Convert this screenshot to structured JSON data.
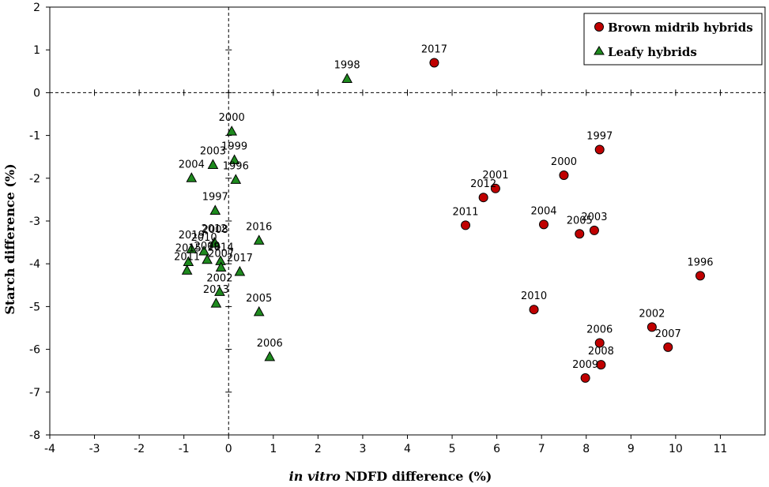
{
  "chart_data": {
    "type": "scatter",
    "xlabel_italic": "in vitro",
    "xlabel_rest": " NDFD difference (%)",
    "ylabel": "Starch difference (%)",
    "xlim": [
      -4,
      12
    ],
    "ylim": [
      -8,
      2
    ],
    "xticks": [
      -4,
      -3,
      -2,
      -1,
      0,
      1,
      2,
      3,
      4,
      5,
      6,
      7,
      8,
      9,
      10,
      11
    ],
    "yticks": [
      -8,
      -7,
      -6,
      -5,
      -4,
      -3,
      -2,
      -1,
      0,
      1,
      2
    ],
    "reference_lines": {
      "x": 0,
      "y": 0,
      "style": "dashed"
    },
    "legend_position": "top-right",
    "series": [
      {
        "name": "Brown midrib hybrids",
        "marker": "circle",
        "color": "#c00000",
        "points": [
          {
            "label": "2017",
            "x": 4.6,
            "y": 0.7
          },
          {
            "label": "1997",
            "x": 8.3,
            "y": -1.33
          },
          {
            "label": "2000",
            "x": 7.5,
            "y": -1.93
          },
          {
            "label": "2001",
            "x": 5.97,
            "y": -2.24
          },
          {
            "label": "2012",
            "x": 5.7,
            "y": -2.45
          },
          {
            "label": "2011",
            "x": 5.3,
            "y": -3.1
          },
          {
            "label": "2004",
            "x": 7.05,
            "y": -3.08
          },
          {
            "label": "2005",
            "x": 7.85,
            "y": -3.3
          },
          {
            "label": "2003",
            "x": 8.18,
            "y": -3.22
          },
          {
            "label": "1996",
            "x": 10.55,
            "y": -4.28
          },
          {
            "label": "2010",
            "x": 6.83,
            "y": -5.07
          },
          {
            "label": "2002",
            "x": 9.47,
            "y": -5.48
          },
          {
            "label": "2006",
            "x": 8.3,
            "y": -5.85
          },
          {
            "label": "2007",
            "x": 9.83,
            "y": -5.95
          },
          {
            "label": "2008",
            "x": 8.33,
            "y": -6.36
          },
          {
            "label": "2009",
            "x": 7.98,
            "y": -6.67
          }
        ]
      },
      {
        "name": "Leafy hybrids",
        "marker": "triangle",
        "color": "#1e8a1e",
        "points": [
          {
            "label": "1998",
            "x": 2.65,
            "y": 0.33
          },
          {
            "label": "2000",
            "x": 0.07,
            "y": -0.9
          },
          {
            "label": "1999",
            "x": 0.13,
            "y": -1.57
          },
          {
            "label": "2003",
            "x": -0.35,
            "y": -1.68
          },
          {
            "label": "1996",
            "x": 0.16,
            "y": -2.03
          },
          {
            "label": "2004",
            "x": -0.83,
            "y": -1.99
          },
          {
            "label": "1997",
            "x": -0.3,
            "y": -2.75
          },
          {
            "label": "2012",
            "x": -0.32,
            "y": -3.5
          },
          {
            "label": "2016",
            "x": 0.68,
            "y": -3.45
          },
          {
            "label": "2010",
            "x": -0.55,
            "y": -3.7
          },
          {
            "label": "2019",
            "x": -0.83,
            "y": -3.65
          },
          {
            "label": "2008",
            "x": -0.3,
            "y": -3.52
          },
          {
            "label": "2014",
            "x": -0.18,
            "y": -3.93
          },
          {
            "label": "2009",
            "x": -0.48,
            "y": -3.9
          },
          {
            "label": "2015",
            "x": -0.9,
            "y": -3.95
          },
          {
            "label": "2017",
            "x": 0.25,
            "y": -4.18
          },
          {
            "label": "2007",
            "x": -0.17,
            "y": -4.08
          },
          {
            "label": "2011",
            "x": -0.93,
            "y": -4.15
          },
          {
            "label": "2013",
            "x": -0.28,
            "y": -4.92
          },
          {
            "label": "2002",
            "x": -0.2,
            "y": -4.65
          },
          {
            "label": "2005",
            "x": 0.68,
            "y": -5.12
          },
          {
            "label": "2006",
            "x": 0.92,
            "y": -6.17
          }
        ]
      }
    ]
  }
}
